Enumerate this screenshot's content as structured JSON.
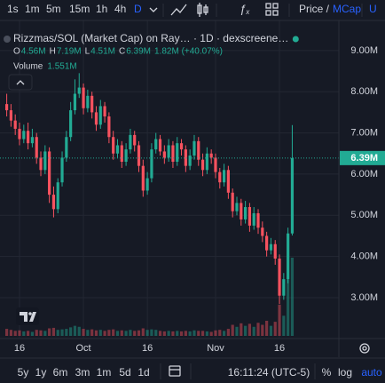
{
  "toolbar": {
    "intervals": [
      "1s",
      "1m",
      "5m",
      "15m",
      "1h",
      "4h",
      "D"
    ],
    "price": "Price /",
    "mcap": "MCap",
    "unit": "U"
  },
  "chart_data": {
    "type": "candlestick",
    "title": "Rizzmas/SOL (Market Cap) on Ray… · 1D · dexscreene…",
    "legend": {
      "items": [
        {
          "key": "O",
          "value": "4.56M"
        },
        {
          "key": "H",
          "value": "7.19M"
        },
        {
          "key": "L",
          "value": "4.51M"
        },
        {
          "key": "C",
          "value": "6.39M"
        }
      ],
      "change": "1.82M (+40.07%)"
    },
    "x": [
      0,
      1,
      2,
      3,
      4,
      5,
      6,
      7,
      8,
      9,
      10,
      11,
      12,
      13,
      14,
      15,
      16,
      17,
      18,
      19,
      20,
      21,
      22,
      23,
      24,
      25,
      26,
      27,
      28,
      29,
      30,
      31,
      32,
      33,
      34,
      35,
      36,
      37,
      38,
      39,
      40,
      41,
      42,
      43,
      44,
      45,
      46,
      47,
      48,
      49,
      50,
      51,
      52,
      53,
      54,
      55,
      56,
      57,
      58,
      59,
      60,
      61,
      62,
      63,
      64,
      65,
      66,
      67
    ],
    "open": [
      7.7,
      7.55,
      7.3,
      7.1,
      6.85,
      7.05,
      6.75,
      6.9,
      6.4,
      6.1,
      6.55,
      5.5,
      5.15,
      5.8,
      6.4,
      6.9,
      7.55,
      7.95,
      8.1,
      7.6,
      7.9,
      7.5,
      7.2,
      7.65,
      7.4,
      6.9,
      6.5,
      6.7,
      6.3,
      6.6,
      6.95,
      6.7,
      6.2,
      5.6,
      5.9,
      6.6,
      6.85,
      6.55,
      6.4,
      6.7,
      6.3,
      6.75,
      6.6,
      6.2,
      6.45,
      6.8,
      6.35,
      6.1,
      6.5,
      6.4,
      6.05,
      5.8,
      6.1,
      5.55,
      5.1,
      5.3,
      4.9,
      5.2,
      4.75,
      5.05,
      4.7,
      4.5,
      4.15,
      4.3,
      3.95,
      3.05,
      3.45,
      4.56
    ],
    "high": [
      7.95,
      7.7,
      7.45,
      7.25,
      7.2,
      7.25,
      7.1,
      7.0,
      6.55,
      6.7,
      6.65,
      5.7,
      5.9,
      6.55,
      7.05,
      7.75,
      8.3,
      8.45,
      8.2,
      8.05,
      8.0,
      7.65,
      7.8,
      7.75,
      7.5,
      7.05,
      6.85,
      6.8,
      6.75,
      7.1,
      7.05,
      6.8,
      6.35,
      6.05,
      6.75,
      7.0,
      6.95,
      6.7,
      6.85,
      6.8,
      6.9,
      6.85,
      6.7,
      6.6,
      6.95,
      6.9,
      6.5,
      6.65,
      6.6,
      6.5,
      6.15,
      6.25,
      6.2,
      5.65,
      5.45,
      5.4,
      5.35,
      5.3,
      5.2,
      5.15,
      4.85,
      4.6,
      4.45,
      4.4,
      4.05,
      3.6,
      4.7,
      7.19
    ],
    "low": [
      7.4,
      7.15,
      6.95,
      6.7,
      6.75,
      6.6,
      6.65,
      6.25,
      5.95,
      6.0,
      5.3,
      4.95,
      5.05,
      5.7,
      6.3,
      6.8,
      7.45,
      7.85,
      7.45,
      7.5,
      7.35,
      7.05,
      7.1,
      7.25,
      6.75,
      6.35,
      6.4,
      6.15,
      6.2,
      6.5,
      6.55,
      6.05,
      5.45,
      5.5,
      5.8,
      6.5,
      6.45,
      6.25,
      6.3,
      6.15,
      6.2,
      6.45,
      6.05,
      6.1,
      6.35,
      6.2,
      5.95,
      6.0,
      6.25,
      5.9,
      5.65,
      5.7,
      5.4,
      4.95,
      5.0,
      4.75,
      4.8,
      4.6,
      4.65,
      4.55,
      4.35,
      4.0,
      4.05,
      3.8,
      2.85,
      2.95,
      3.35,
      4.51
    ],
    "close": [
      7.55,
      7.3,
      7.1,
      6.85,
      7.05,
      6.75,
      6.9,
      6.4,
      6.1,
      6.55,
      5.5,
      5.15,
      5.8,
      6.4,
      6.9,
      7.55,
      7.95,
      8.1,
      7.6,
      7.9,
      7.5,
      7.2,
      7.65,
      7.4,
      6.9,
      6.5,
      6.7,
      6.3,
      6.6,
      6.95,
      6.7,
      6.2,
      5.6,
      5.9,
      6.6,
      6.85,
      6.55,
      6.4,
      6.7,
      6.3,
      6.75,
      6.6,
      6.2,
      6.45,
      6.8,
      6.35,
      6.1,
      6.5,
      6.4,
      6.05,
      5.8,
      6.1,
      5.55,
      5.1,
      5.3,
      4.9,
      5.2,
      4.75,
      5.05,
      4.7,
      4.5,
      4.15,
      4.3,
      3.95,
      3.05,
      3.45,
      4.56,
      6.39
    ],
    "volume": {
      "name": "Volume",
      "value_label": "1.551M",
      "values": [
        0.14,
        0.12,
        0.1,
        0.11,
        0.09,
        0.1,
        0.08,
        0.12,
        0.11,
        0.1,
        0.15,
        0.16,
        0.12,
        0.13,
        0.14,
        0.17,
        0.2,
        0.18,
        0.14,
        0.12,
        0.13,
        0.11,
        0.12,
        0.1,
        0.12,
        0.13,
        0.1,
        0.11,
        0.1,
        0.12,
        0.1,
        0.11,
        0.15,
        0.12,
        0.13,
        0.12,
        0.1,
        0.09,
        0.1,
        0.09,
        0.1,
        0.09,
        0.1,
        0.09,
        0.11,
        0.1,
        0.1,
        0.09,
        0.08,
        0.11,
        0.12,
        0.1,
        0.14,
        0.22,
        0.18,
        0.25,
        0.2,
        0.24,
        0.18,
        0.26,
        0.22,
        0.3,
        0.2,
        0.28,
        0.62,
        0.4,
        1.12,
        1.551
      ]
    },
    "last_price_label": "6.39M",
    "ylim": [
      2.03,
      9.73
    ],
    "yticks": [
      {
        "value": 3,
        "label": "3.00M"
      },
      {
        "value": 4,
        "label": "4.00M"
      },
      {
        "value": 5,
        "label": "5.00M"
      },
      {
        "value": 6,
        "label": "6.00M"
      },
      {
        "value": 7,
        "label": "7.00M"
      },
      {
        "value": 8,
        "label": "8.00M"
      },
      {
        "value": 9,
        "label": "9.00M"
      }
    ],
    "xlim": [
      -1.58,
      77.94
    ],
    "xticks": [
      {
        "value": 3,
        "label": "16"
      },
      {
        "value": 18,
        "label": "Oct"
      },
      {
        "value": 33,
        "label": "16"
      },
      {
        "value": 49,
        "label": "Nov"
      },
      {
        "value": 64,
        "label": "16"
      }
    ],
    "up_color": "#22ab94",
    "down_color": "#f7525f",
    "grid": true
  },
  "bottom_bar": {
    "ranges": [
      "5y",
      "1y",
      "6m",
      "3m",
      "1m",
      "5d",
      "1d"
    ],
    "time": "16:11:24 (UTC-5)",
    "percent": "%",
    "log": "log",
    "auto": "auto"
  }
}
